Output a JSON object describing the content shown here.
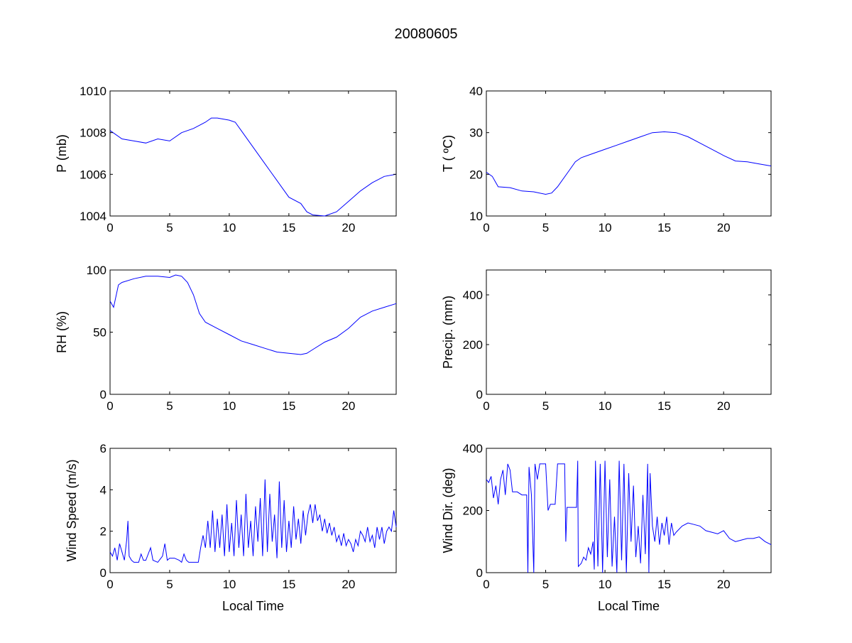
{
  "figure_title": "20080605",
  "line_color": "#0000ff",
  "chart_data": [
    {
      "type": "line",
      "ylabel": "P (mb)",
      "xlabel": "",
      "xlim": [
        0,
        24
      ],
      "ylim": [
        1004,
        1010
      ],
      "xticks": [
        "0",
        "5",
        "10",
        "15",
        "20"
      ],
      "yticks": [
        "1004",
        "1006",
        "1008",
        "1010"
      ],
      "x": [
        0,
        1,
        2,
        3,
        4,
        5,
        6,
        7,
        8,
        8.5,
        9,
        10,
        10.5,
        11,
        12,
        13,
        14,
        15,
        16,
        16.5,
        17,
        18,
        19,
        20,
        21,
        22,
        23,
        24
      ],
      "y": [
        1008.1,
        1007.7,
        1007.6,
        1007.5,
        1007.7,
        1007.6,
        1008.0,
        1008.2,
        1008.5,
        1008.7,
        1008.7,
        1008.6,
        1008.5,
        1008.1,
        1007.3,
        1006.5,
        1005.7,
        1004.9,
        1004.6,
        1004.2,
        1004.05,
        1004.0,
        1004.2,
        1004.7,
        1005.2,
        1005.6,
        1005.9,
        1006.0
      ]
    },
    {
      "type": "line",
      "ylabel": "T ( ºC)",
      "xlabel": "",
      "xlim": [
        0,
        24
      ],
      "ylim": [
        10,
        40
      ],
      "xticks": [
        "0",
        "5",
        "10",
        "15",
        "20"
      ],
      "yticks": [
        "10",
        "20",
        "30",
        "40"
      ],
      "x": [
        0,
        0.5,
        1,
        2,
        3,
        4,
        5,
        5.5,
        6,
        7,
        7.5,
        8,
        9,
        10,
        11,
        12,
        13,
        14,
        15,
        16,
        17,
        18,
        19,
        20,
        21,
        22,
        23,
        24
      ],
      "y": [
        20.5,
        19.5,
        17,
        16.8,
        16,
        15.8,
        15.2,
        15.5,
        17,
        21,
        23,
        24,
        25,
        26,
        27,
        28,
        29,
        30,
        30.2,
        30,
        29,
        27.5,
        26,
        24.5,
        23.2,
        23,
        22.5,
        22
      ]
    },
    {
      "type": "line",
      "ylabel": "RH (%)",
      "xlabel": "",
      "xlim": [
        0,
        24
      ],
      "ylim": [
        0,
        100
      ],
      "xticks": [
        "0",
        "5",
        "10",
        "15",
        "20"
      ],
      "yticks": [
        "0",
        "50",
        "100"
      ],
      "x": [
        0,
        0.3,
        0.7,
        1,
        2,
        3,
        4,
        5,
        5.5,
        6,
        6.5,
        7,
        7.5,
        8,
        9,
        10,
        11,
        12,
        13,
        14,
        15,
        16,
        16.5,
        17,
        18,
        19,
        20,
        21,
        22,
        23,
        24
      ],
      "y": [
        75,
        70,
        88,
        90,
        93,
        95,
        95,
        94,
        96,
        95,
        90,
        80,
        65,
        58,
        53,
        48,
        43,
        40,
        37,
        34,
        33,
        32,
        33,
        36,
        42,
        46,
        53,
        62,
        67,
        70,
        73
      ]
    },
    {
      "type": "line",
      "ylabel": "Precip. (mm)",
      "xlabel": "",
      "xlim": [
        0,
        24
      ],
      "ylim": [
        0,
        500
      ],
      "xticks": [
        "0",
        "5",
        "10",
        "15",
        "20"
      ],
      "yticks": [
        "0",
        "200",
        "400"
      ],
      "x": [],
      "y": []
    },
    {
      "type": "line",
      "ylabel": "Wind Speed (m/s)",
      "xlabel": "Local Time",
      "xlim": [
        0,
        24
      ],
      "ylim": [
        0,
        6
      ],
      "xticks": [
        "0",
        "5",
        "10",
        "15",
        "20"
      ],
      "yticks": [
        "0",
        "2",
        "4",
        "6"
      ],
      "x": [
        0,
        0.2,
        0.4,
        0.6,
        0.8,
        1.0,
        1.2,
        1.4,
        1.5,
        1.6,
        1.8,
        2.0,
        2.4,
        2.6,
        2.8,
        3.0,
        3.4,
        3.6,
        4.0,
        4.4,
        4.6,
        4.8,
        5.0,
        5.4,
        5.8,
        6.0,
        6.2,
        6.4,
        6.6,
        7.0,
        7.4,
        7.6,
        7.8,
        8.0,
        8.2,
        8.4,
        8.6,
        8.8,
        9.0,
        9.2,
        9.4,
        9.6,
        9.8,
        10.0,
        10.2,
        10.4,
        10.6,
        10.8,
        11.0,
        11.2,
        11.4,
        11.6,
        11.8,
        12.0,
        12.2,
        12.4,
        12.6,
        12.8,
        13.0,
        13.2,
        13.4,
        13.6,
        13.8,
        14.0,
        14.2,
        14.4,
        14.6,
        14.8,
        15.0,
        15.2,
        15.4,
        15.6,
        15.8,
        16.0,
        16.2,
        16.4,
        16.6,
        16.8,
        17.0,
        17.2,
        17.4,
        17.6,
        17.8,
        18.0,
        18.2,
        18.4,
        18.6,
        18.8,
        19.0,
        19.2,
        19.4,
        19.6,
        19.8,
        20.0,
        20.2,
        20.4,
        20.6,
        20.8,
        21.0,
        21.2,
        21.4,
        21.6,
        21.8,
        22.0,
        22.2,
        22.4,
        22.6,
        22.8,
        23.0,
        23.2,
        23.4,
        23.6,
        23.8,
        24.0
      ],
      "y": [
        1.0,
        0.8,
        1.2,
        0.6,
        1.4,
        1.0,
        0.6,
        1.6,
        2.5,
        0.8,
        0.6,
        0.5,
        0.5,
        0.9,
        0.6,
        0.6,
        1.2,
        0.6,
        0.5,
        0.8,
        1.4,
        0.6,
        0.7,
        0.7,
        0.6,
        0.5,
        0.9,
        0.6,
        0.5,
        0.5,
        0.5,
        1.2,
        1.8,
        1.2,
        2.5,
        1.2,
        3.0,
        1.0,
        2.6,
        1.2,
        2.8,
        0.8,
        3.3,
        1.0,
        2.4,
        0.8,
        3.5,
        1.2,
        2.8,
        0.8,
        3.8,
        1.2,
        2.5,
        0.8,
        3.2,
        1.5,
        3.6,
        0.8,
        4.5,
        1.0,
        3.8,
        1.5,
        2.8,
        0.7,
        4.4,
        1.2,
        3.5,
        1.0,
        2.5,
        1.2,
        3.2,
        1.6,
        2.6,
        1.4,
        3.0,
        1.8,
        2.8,
        3.3,
        2.4,
        3.3,
        2.5,
        2.8,
        2.0,
        2.6,
        1.9,
        2.4,
        1.8,
        2.2,
        1.5,
        1.8,
        1.3,
        1.9,
        1.3,
        1.6,
        1.4,
        1.0,
        1.6,
        1.3,
        2.0,
        1.8,
        1.5,
        2.2,
        1.5,
        1.8,
        1.2,
        2.2,
        1.6,
        2.2,
        1.4,
        2.0,
        2.2,
        2.0,
        3.0,
        2.2
      ]
    },
    {
      "type": "line",
      "ylabel": "Wind Dir. (deg)",
      "xlabel": "Local Time",
      "xlim": [
        0,
        24
      ],
      "ylim": [
        0,
        400
      ],
      "xticks": [
        "0",
        "5",
        "10",
        "15",
        "20"
      ],
      "yticks": [
        "0",
        "200",
        "400"
      ],
      "x": [
        0,
        0.2,
        0.4,
        0.6,
        0.8,
        1.0,
        1.2,
        1.4,
        1.6,
        1.8,
        2.0,
        2.2,
        2.6,
        3.0,
        3.4,
        3.5,
        3.6,
        3.8,
        4.0,
        4.1,
        4.3,
        4.5,
        5.0,
        5.2,
        5.4,
        5.8,
        6.0,
        6.6,
        6.7,
        6.8,
        7.2,
        7.6,
        7.7,
        7.75,
        8.0,
        8.2,
        8.4,
        8.6,
        8.8,
        9.0,
        9.1,
        9.2,
        9.4,
        9.6,
        9.8,
        10.0,
        10.2,
        10.4,
        10.6,
        10.8,
        11.0,
        11.2,
        11.4,
        11.6,
        11.8,
        12.0,
        12.2,
        12.4,
        12.6,
        12.8,
        13.0,
        13.2,
        13.4,
        13.6,
        13.7,
        13.8,
        14.0,
        14.2,
        14.4,
        14.6,
        14.8,
        15.0,
        15.2,
        15.4,
        15.6,
        15.8,
        16.0,
        16.5,
        17.0,
        17.5,
        18,
        18.5,
        19,
        19.5,
        20,
        20.5,
        21,
        21.5,
        22,
        22.5,
        23,
        23.5,
        24
      ],
      "y": [
        300,
        290,
        310,
        240,
        280,
        220,
        300,
        330,
        250,
        350,
        330,
        260,
        260,
        250,
        250,
        0,
        340,
        250,
        0,
        350,
        300,
        350,
        350,
        200,
        220,
        220,
        350,
        350,
        100,
        210,
        210,
        210,
        360,
        20,
        30,
        50,
        40,
        80,
        60,
        100,
        10,
        360,
        20,
        350,
        0,
        360,
        50,
        300,
        20,
        180,
        0,
        360,
        40,
        350,
        0,
        320,
        100,
        280,
        50,
        150,
        30,
        250,
        60,
        350,
        0,
        320,
        150,
        100,
        180,
        90,
        160,
        120,
        180,
        90,
        160,
        120,
        130,
        150,
        160,
        155,
        150,
        135,
        130,
        125,
        135,
        110,
        100,
        105,
        110,
        110,
        115,
        100,
        90
      ]
    }
  ]
}
